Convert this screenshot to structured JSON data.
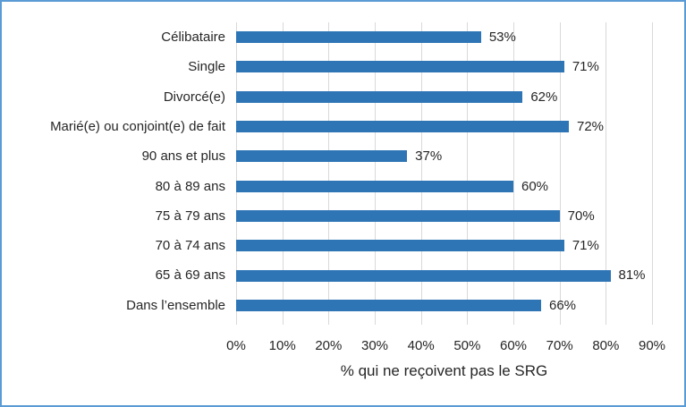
{
  "chart_data": {
    "type": "bar",
    "orientation": "horizontal",
    "title": "",
    "categories": [
      "Célibataire",
      "Single",
      "Divorcé(e)",
      "Marié(e) ou conjoint(e) de fait",
      "90 ans et plus",
      "80 à 89 ans",
      "75 à 79 ans",
      "70 à 74 ans",
      "65 à 69 ans",
      "Dans l’ensemble"
    ],
    "values": [
      53,
      71,
      62,
      72,
      37,
      60,
      70,
      71,
      81,
      66
    ],
    "data_labels": [
      "53%",
      "71%",
      "62%",
      "72%",
      "37%",
      "60%",
      "70%",
      "71%",
      "81%",
      "66%"
    ],
    "xlabel": "% qui ne reçoivent pas le SRG",
    "ylabel": "",
    "x_ticks": [
      "0%",
      "10%",
      "20%",
      "30%",
      "40%",
      "50%",
      "60%",
      "70%",
      "80%",
      "90%"
    ],
    "xlim": [
      0,
      90
    ],
    "grid": true,
    "legend": false,
    "colors": {
      "bar": "#2E75B6",
      "frame_border": "#5B9BD5",
      "gridline": "#D9D9D9",
      "text": "#262626"
    }
  }
}
